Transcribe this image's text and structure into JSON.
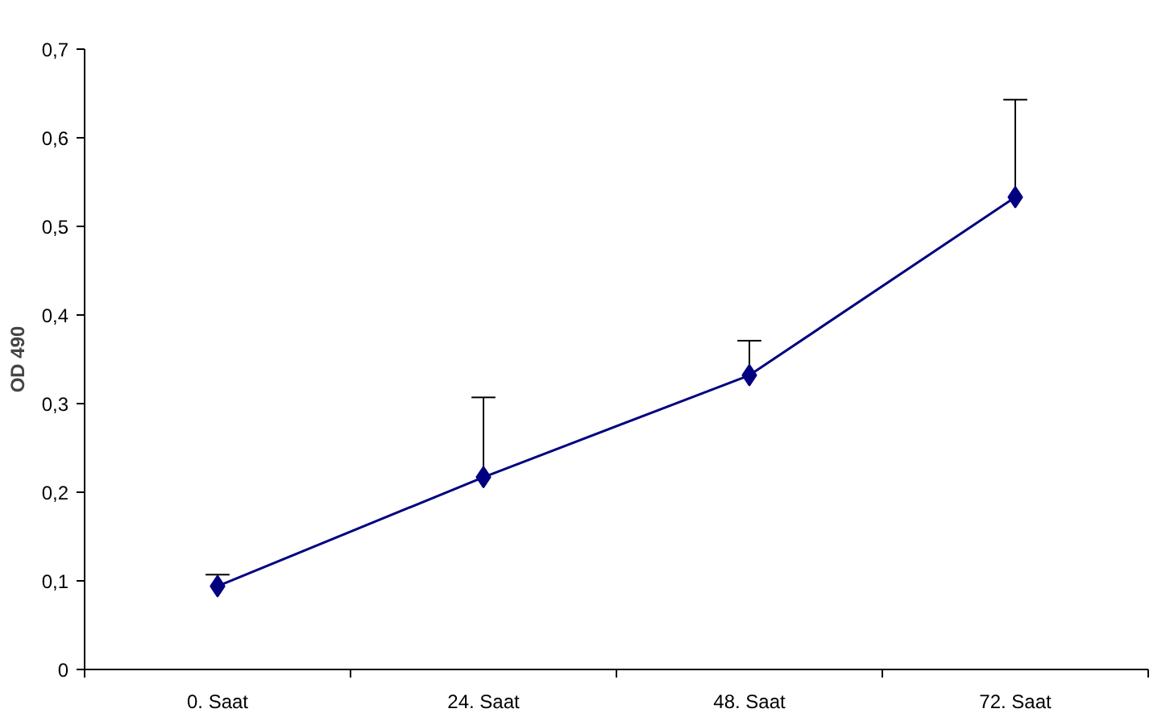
{
  "chart_data": {
    "type": "line",
    "ylabel": "OD 490",
    "categories": [
      "0. Saat",
      "24. Saat",
      "48. Saat",
      "72. Saat"
    ],
    "series": [
      {
        "color": "#000080",
        "values": [
          0.094,
          0.217,
          0.332,
          0.533
        ],
        "errors": [
          [
            0.094,
            0.107
          ],
          [
            0.217,
            0.307
          ],
          [
            0.332,
            0.371
          ],
          [
            0.533,
            0.643
          ]
        ]
      }
    ],
    "ylim": [
      0,
      0.7
    ],
    "yticks": [
      0,
      {
        "value": 0.1,
        "label": "0,1"
      },
      {
        "value": 0.2,
        "label": "0,2"
      },
      {
        "value": 0.3,
        "label": "0,3"
      },
      {
        "value": 0.4,
        "label": "0,4"
      },
      {
        "value": 0.5,
        "label": "0,5"
      },
      {
        "value": 0.6,
        "label": "0,6"
      },
      {
        "value": 0.7,
        "label": "0,7"
      }
    ],
    "marker": "diamond",
    "line_style": "solid"
  }
}
